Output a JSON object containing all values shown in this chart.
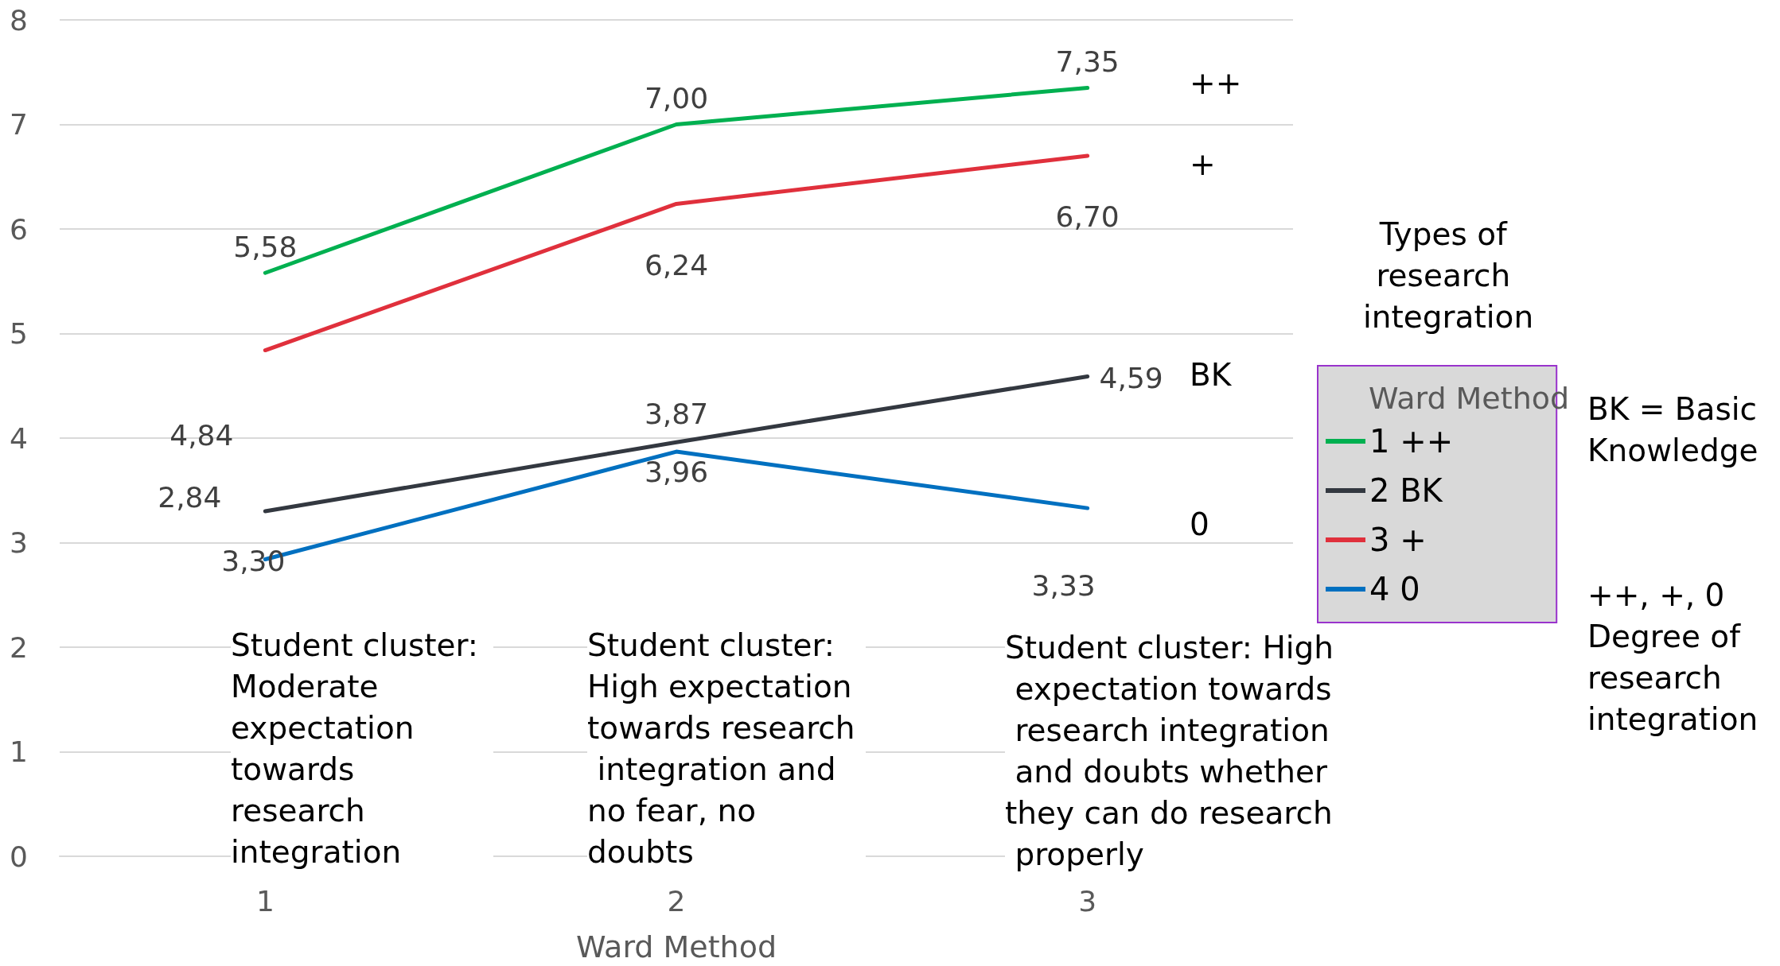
{
  "chart_data": {
    "type": "line",
    "xlabel": "Ward Method",
    "legend_title": "Ward Method",
    "categories": [
      "1",
      "2",
      "3"
    ],
    "series": [
      {
        "name": "1 ++",
        "color": "#00b050",
        "values": [
          5.58,
          7.0,
          7.35
        ],
        "value_labels": [
          "5,58",
          "7,00",
          "7,35"
        ]
      },
      {
        "name": "2 BK",
        "color": "#333840",
        "values": [
          3.3,
          3.96,
          4.59
        ],
        "value_labels": [
          "3,30",
          "3,96",
          "4,59"
        ]
      },
      {
        "name": "3 +",
        "color": "#e0303c",
        "values": [
          4.84,
          6.24,
          6.7
        ],
        "value_labels": [
          "4,84",
          "6,24",
          "6,70"
        ]
      },
      {
        "name": "4 0",
        "color": "#0070c0",
        "values": [
          2.84,
          3.87,
          3.33
        ],
        "value_labels": [
          "2,84",
          "3,87",
          "3,33"
        ]
      }
    ],
    "ylim": [
      0,
      8
    ],
    "yticks": [
      0,
      1,
      2,
      3,
      4,
      5,
      6,
      7,
      8
    ],
    "grid": "y",
    "legend": "right",
    "marker": "none",
    "line_style": "solid",
    "annotations": [
      "Student cluster: Moderate expectation towards research integration",
      "Student cluster: High expectation towards research integration and no fear, no doubts",
      "Student cluster: High expectation towards research integration and doubts whether they can do research properly",
      "Types of research integration",
      "BK = Basic Knowledge",
      "++, +, 0 Degree of research integration",
      "++",
      "+",
      "BK",
      "0"
    ]
  }
}
